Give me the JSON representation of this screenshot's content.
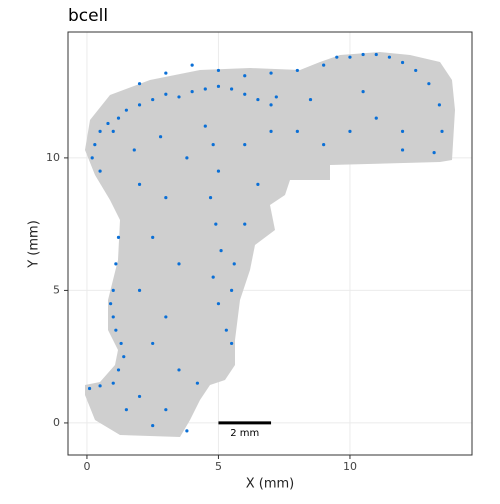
{
  "chart_data": {
    "type": "scatter",
    "title": "bcell",
    "x_label": "X (mm)",
    "y_label": "Y (mm)",
    "xlim": [
      -0.72,
      14.64
    ],
    "ylim": [
      -1.21,
      14.75
    ],
    "xticks": [
      0,
      5,
      10
    ],
    "yticks": [
      0,
      5,
      10
    ],
    "grid": true,
    "series": [
      {
        "name": "bcell",
        "color": "#0a6fd6",
        "x": [
          0.5,
          0.8,
          1.2,
          1.5,
          2.0,
          2.5,
          3.0,
          3.5,
          4.0,
          4.5,
          5.0,
          5.5,
          6.0,
          6.5,
          7.0,
          7.2,
          1.0,
          0.3,
          0.2,
          0.5,
          2,
          3,
          4,
          5,
          6,
          7,
          8,
          9,
          9.5,
          10,
          10.5,
          11,
          11.5,
          12,
          12.5,
          13,
          13.4,
          13.5,
          13.2,
          4.5,
          4.8,
          5.0,
          4.7,
          4.9,
          5.1,
          4.8,
          5.0,
          5.3,
          5.5,
          5.6,
          1.2,
          1.1,
          1.0,
          0.9,
          1.0,
          1.1,
          1.3,
          1.4,
          1.2,
          1.0,
          0.5,
          0.1,
          2,
          3,
          2.5,
          3.5,
          2,
          3,
          2.5,
          3.5,
          2,
          3,
          3.8,
          1.5,
          2.5,
          4.2,
          5.5,
          6,
          6.5,
          7,
          8,
          9,
          10,
          11,
          12,
          10.5,
          8.5,
          12,
          6,
          3.8,
          2.8,
          1.8
        ],
        "values": [
          11.0,
          11.3,
          11.5,
          11.8,
          12.0,
          12.2,
          12.4,
          12.3,
          12.5,
          12.6,
          12.7,
          12.6,
          12.4,
          12.2,
          12.0,
          12.3,
          11.0,
          10.5,
          10.0,
          9.5,
          12.8,
          13.2,
          13.5,
          13.3,
          13.1,
          13.2,
          13.3,
          13.5,
          13.8,
          13.8,
          13.9,
          13.9,
          13.8,
          13.6,
          13.3,
          12.8,
          12.0,
          11.0,
          10.2,
          11.2,
          10.5,
          9.5,
          8.5,
          7.5,
          6.5,
          5.5,
          4.5,
          3.5,
          5.0,
          6.0,
          7.0,
          6.0,
          5.0,
          4.5,
          4.0,
          3.5,
          3.0,
          2.5,
          2.0,
          1.5,
          1.4,
          1.3,
          9,
          8.5,
          7,
          6,
          5,
          4,
          3,
          2,
          1,
          0.5,
          -0.3,
          0.5,
          -0.1,
          1.5,
          3,
          7.5,
          9,
          11,
          11,
          10.5,
          11,
          11.5,
          11,
          12.5,
          12.2,
          10.3,
          10.5,
          10,
          10.8,
          10.3
        ]
      }
    ],
    "scale_bar": {
      "x": [
        5,
        7
      ],
      "y": 0,
      "label": "2 mm"
    }
  }
}
